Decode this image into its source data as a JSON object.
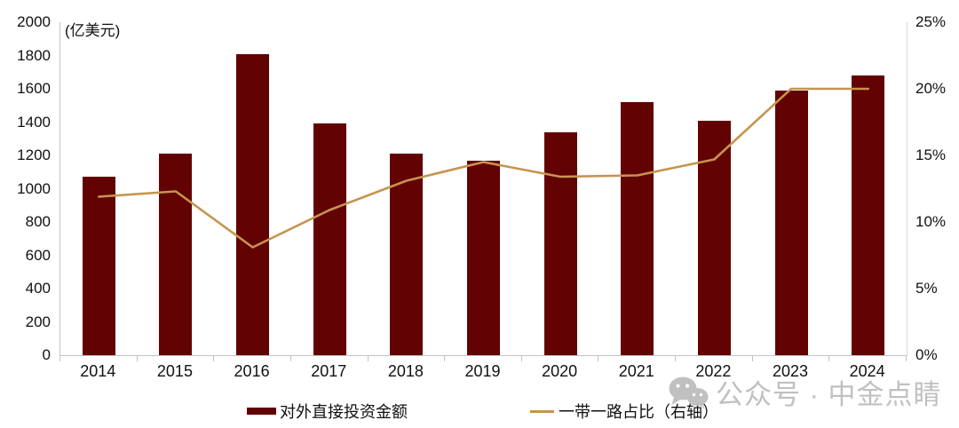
{
  "chart_data": {
    "type": "bar",
    "title": "",
    "categories": [
      "2014",
      "2015",
      "2016",
      "2017",
      "2018",
      "2019",
      "2020",
      "2021",
      "2022",
      "2023",
      "2024"
    ],
    "series": [
      {
        "name": "对外直接投资金额",
        "type": "bar",
        "axis": "left",
        "color": "#620202",
        "values": [
          1070,
          1210,
          1810,
          1390,
          1210,
          1170,
          1340,
          1520,
          1410,
          1590,
          1680
        ]
      },
      {
        "name": "一带一路占比（右轴）",
        "type": "line",
        "axis": "right",
        "color": "#C6944F",
        "values": [
          11.9,
          12.3,
          8.1,
          10.9,
          13.1,
          14.5,
          13.4,
          13.5,
          14.7,
          20,
          20
        ]
      }
    ],
    "left_axis": {
      "unit_label": "(亿美元)",
      "min": 0,
      "max": 2000,
      "step": 200
    },
    "right_axis": {
      "min": 0,
      "max": 25,
      "step": 5,
      "suffix": "%"
    },
    "grid": false,
    "legend_position": "bottom"
  },
  "watermark": {
    "text": "公众号 · 中金点睛",
    "icon": "wechat-icon"
  },
  "colors": {
    "bar": "#620202",
    "line": "#C6944F",
    "axis": "#C3C3C3",
    "text": "#111111",
    "watermark": "#BDBDBD"
  }
}
